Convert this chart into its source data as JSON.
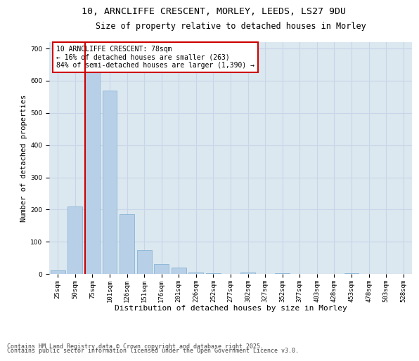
{
  "title_line1": "10, ARNCLIFFE CRESCENT, MORLEY, LEEDS, LS27 9DU",
  "title_line2": "Size of property relative to detached houses in Morley",
  "xlabel": "Distribution of detached houses by size in Morley",
  "ylabel": "Number of detached properties",
  "bar_labels": [
    "25sqm",
    "50sqm",
    "75sqm",
    "101sqm",
    "126sqm",
    "151sqm",
    "176sqm",
    "201sqm",
    "226sqm",
    "252sqm",
    "277sqm",
    "302sqm",
    "327sqm",
    "352sqm",
    "377sqm",
    "403sqm",
    "428sqm",
    "453sqm",
    "478sqm",
    "503sqm",
    "528sqm"
  ],
  "bar_values": [
    10,
    210,
    660,
    570,
    185,
    75,
    30,
    20,
    5,
    3,
    0,
    5,
    0,
    3,
    0,
    0,
    0,
    3,
    0,
    0,
    0
  ],
  "bar_color": "#b8cfe8",
  "bar_edge_color": "#7aadd0",
  "highlight_color": "#cc0000",
  "vline_bar_index": 2,
  "annotation_lines": [
    "10 ARNCLIFFE CRESCENT: 78sqm",
    "← 16% of detached houses are smaller (263)",
    "84% of semi-detached houses are larger (1,390) →"
  ],
  "annotation_box_facecolor": "#ffffff",
  "annotation_box_edgecolor": "#cc0000",
  "ylim": [
    0,
    720
  ],
  "yticks": [
    0,
    100,
    200,
    300,
    400,
    500,
    600,
    700
  ],
  "grid_color": "#c8d4e8",
  "bg_color": "#dce8f0",
  "footer_line1": "Contains HM Land Registry data © Crown copyright and database right 2025.",
  "footer_line2": "Contains public sector information licensed under the Open Government Licence v3.0.",
  "title_fontsize": 9.5,
  "subtitle_fontsize": 8.5,
  "ylabel_fontsize": 7.5,
  "xlabel_fontsize": 8,
  "tick_fontsize": 6.5,
  "annotation_fontsize": 7,
  "footer_fontsize": 6
}
